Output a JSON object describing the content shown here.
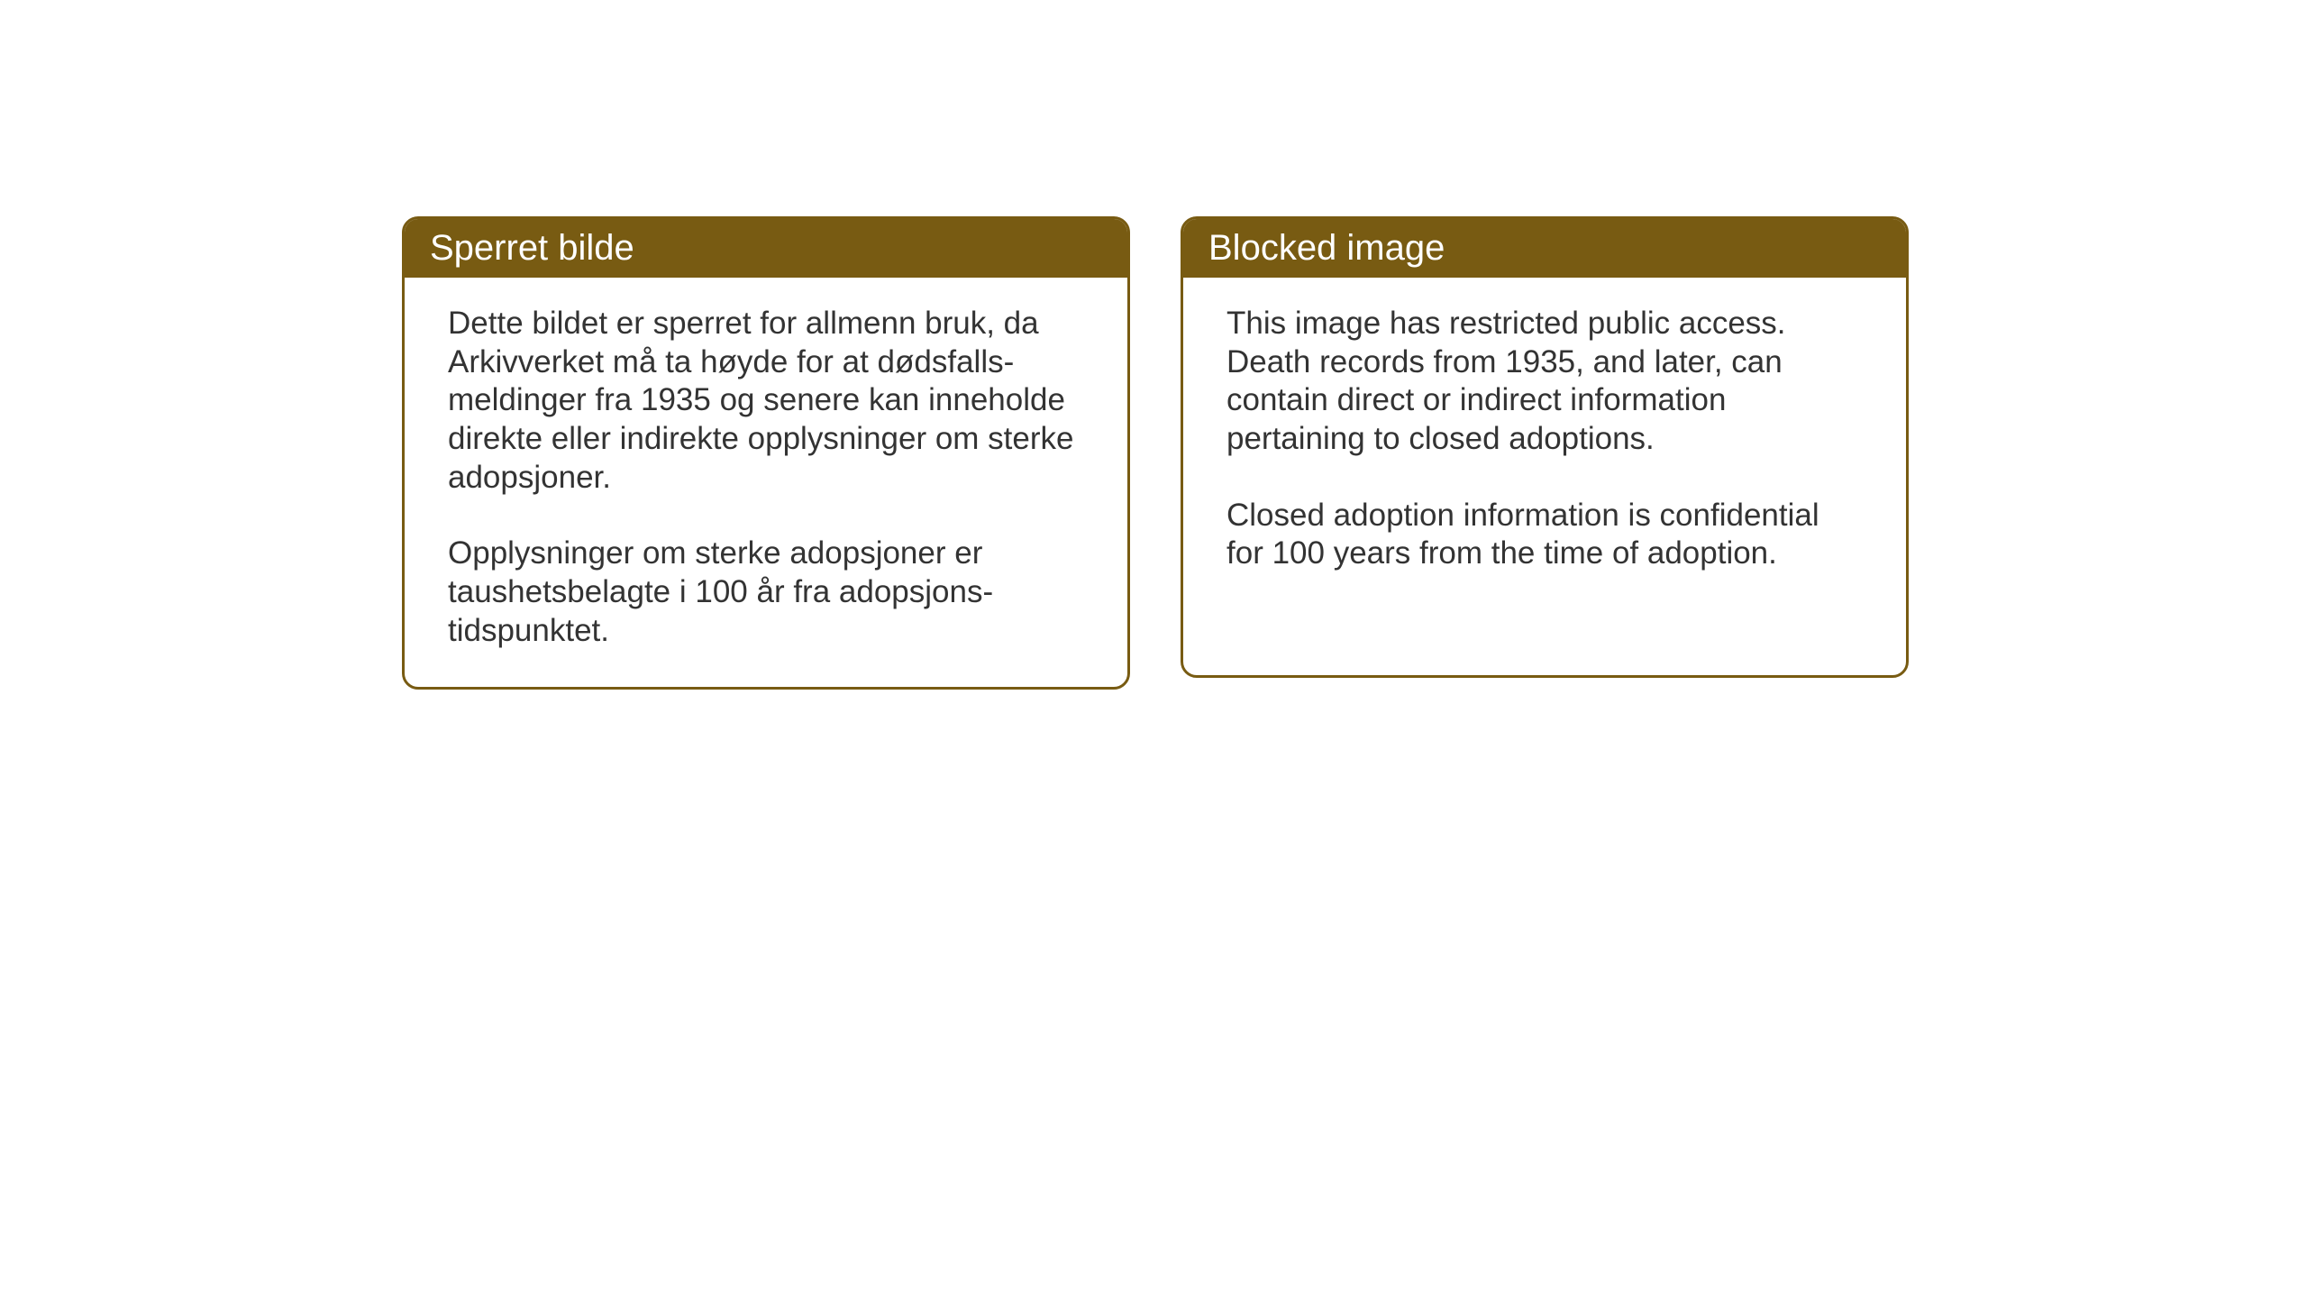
{
  "layout": {
    "background_color": "#ffffff",
    "card_border_color": "#785b12",
    "card_header_bg": "#785b12",
    "card_header_text_color": "#ffffff",
    "card_body_text_color": "#333333",
    "header_fontsize": 40,
    "body_fontsize": 35,
    "border_radius": 18,
    "border_width": 3
  },
  "cards": {
    "left": {
      "title": "Sperret bilde",
      "paragraph1": "Dette bildet er sperret for allmenn bruk, da Arkivverket må ta høyde for at dødsfalls-meldinger fra 1935 og senere kan inneholde direkte eller indirekte opplysninger om sterke adopsjoner.",
      "paragraph2": "Opplysninger om sterke adopsjoner er taushetsbelagte i 100 år fra adopsjons-tidspunktet."
    },
    "right": {
      "title": "Blocked image",
      "paragraph1": "This image has restricted public access. Death records from 1935, and later, can contain direct or indirect information pertaining to closed adoptions.",
      "paragraph2": "Closed adoption information is confidential for 100 years from the time of adoption."
    }
  }
}
